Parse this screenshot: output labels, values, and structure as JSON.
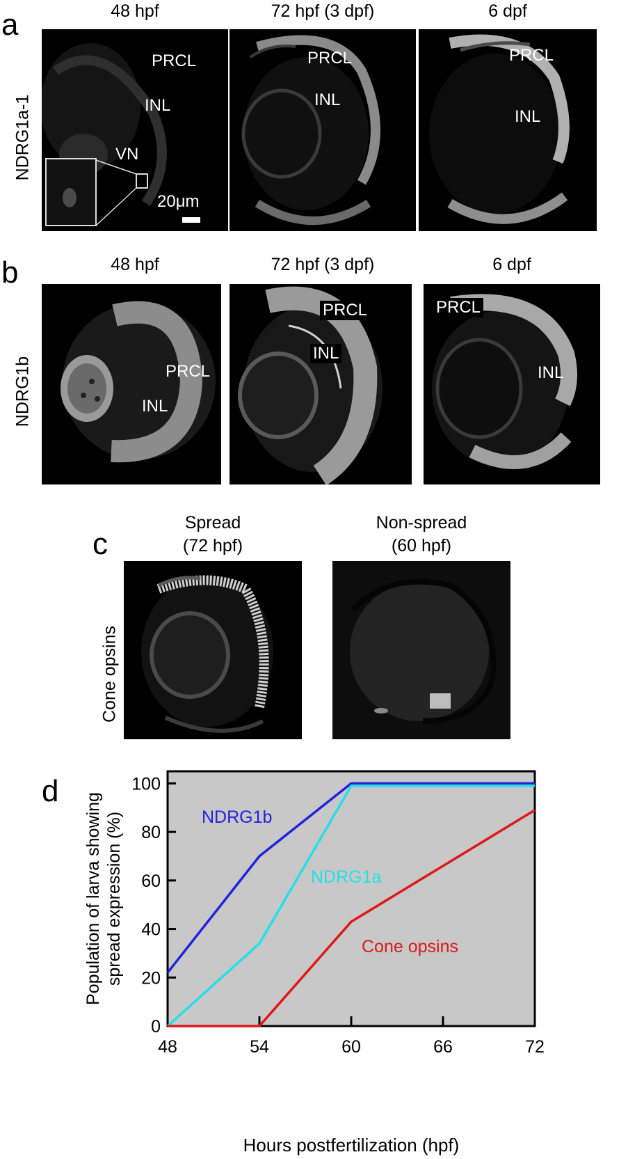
{
  "panel_a": {
    "letter": "a",
    "row_label": "NDRG1a-1",
    "columns": [
      "48 hpf",
      "72 hpf (3 dpf)",
      "6 dpf"
    ],
    "labels": {
      "p1_prcl": "PRCL",
      "p1_inl": "INL",
      "p1_vn": "VN",
      "scale": "20μm",
      "p2_prcl": "PRCL",
      "p2_inl": "INL",
      "p3_prcl": "PRCL",
      "p3_inl": "INL"
    }
  },
  "panel_b": {
    "letter": "b",
    "row_label": "NDRG1b",
    "columns": [
      "48 hpf",
      "72 hpf (3 dpf)",
      "6 dpf"
    ],
    "labels": {
      "p1_prcl": "PRCL",
      "p1_inl": "INL",
      "p2_prcl": "PRCL",
      "p2_inl": "INL",
      "p3_prcl": "PRCL",
      "p3_inl": "INL"
    }
  },
  "panel_c": {
    "letter": "c",
    "row_label": "Cone opsins",
    "columns": [
      {
        "line1": "Spread",
        "line2": "(72 hpf)"
      },
      {
        "line1": "Non-spread",
        "line2": "(60 hpf)"
      }
    ]
  },
  "panel_d": {
    "letter": "d",
    "colors": {
      "plot_bg": "#c8c8c8",
      "ndrg1b": "#2222dd",
      "ndrg1a": "#22e0e8",
      "cone": "#e01818"
    }
  },
  "chart_data": {
    "type": "line",
    "xlabel": "Hours postfertilization (hpf)",
    "ylabel_line1": "Population of larva showing",
    "ylabel_line2": "spread expression (%)",
    "xlim": [
      48,
      72
    ],
    "ylim": [
      0,
      105
    ],
    "xticks": [
      48,
      54,
      60,
      66,
      72
    ],
    "yticks": [
      0,
      20,
      40,
      60,
      80,
      100
    ],
    "grid": false,
    "series": [
      {
        "name": "NDRG1b",
        "color": "#2222dd",
        "x": [
          48,
          54,
          60,
          72
        ],
        "y": [
          22,
          70,
          100,
          100
        ]
      },
      {
        "name": "NDRG1a",
        "color": "#22e0e8",
        "x": [
          48,
          54,
          60,
          72
        ],
        "y": [
          0,
          34,
          99,
          99
        ]
      },
      {
        "name": "Cone opsins",
        "color": "#e01818",
        "x": [
          48,
          54,
          60,
          72
        ],
        "y": [
          0,
          0,
          43,
          89
        ]
      }
    ]
  }
}
